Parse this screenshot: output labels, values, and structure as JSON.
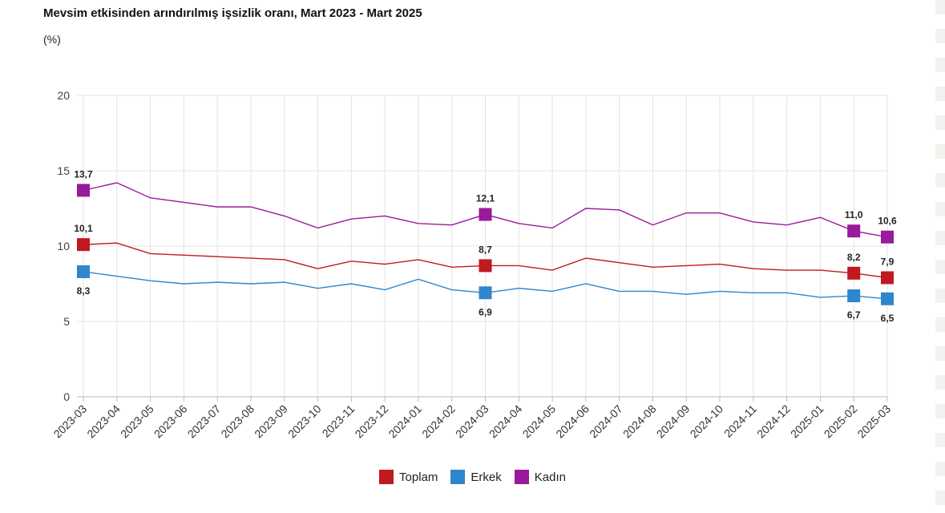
{
  "title": "Mevsim etkisinden arındırılmış işsizlik oranı, Mart 2023 - Mart 2025",
  "unit": "(%)",
  "chart_data": {
    "type": "line",
    "title": "Mevsim etkisinden arındırılmış işsizlik oranı, Mart 2023 - Mart 2025",
    "ylabel": "(%)",
    "ylim": [
      0,
      20
    ],
    "yticks": [
      0,
      5,
      10,
      15,
      20
    ],
    "grid": true,
    "legend_position": "bottom",
    "categories": [
      "2023-03",
      "2023-04",
      "2023-05",
      "2023-06",
      "2023-07",
      "2023-08",
      "2023-09",
      "2023-10",
      "2023-11",
      "2023-12",
      "2024-01",
      "2024-02",
      "2024-03",
      "2024-04",
      "2024-05",
      "2024-06",
      "2024-07",
      "2024-08",
      "2024-09",
      "2024-10",
      "2024-11",
      "2024-12",
      "2025-01",
      "2025-02",
      "2025-03"
    ],
    "series": [
      {
        "name": "Toplam",
        "color": "#c0191f",
        "values": [
          10.1,
          10.2,
          9.5,
          9.4,
          9.3,
          9.2,
          9.1,
          8.5,
          9.0,
          8.8,
          9.1,
          8.6,
          8.7,
          8.7,
          8.4,
          9.2,
          8.9,
          8.6,
          8.7,
          8.8,
          8.5,
          8.4,
          8.4,
          8.2,
          7.9
        ],
        "labels": {
          "0": "10,1",
          "12": "8,7",
          "23": "8,2",
          "24": "7,9"
        },
        "label_side": "above"
      },
      {
        "name": "Erkek",
        "color": "#2f86cc",
        "values": [
          8.3,
          8.0,
          7.7,
          7.5,
          7.6,
          7.5,
          7.6,
          7.2,
          7.5,
          7.1,
          7.8,
          7.1,
          6.9,
          7.2,
          7.0,
          7.5,
          7.0,
          7.0,
          6.8,
          7.0,
          6.9,
          6.9,
          6.6,
          6.7,
          6.5
        ],
        "labels": {
          "0": "8,3",
          "12": "6,9",
          "23": "6,7",
          "24": "6,5"
        },
        "label_side": "below"
      },
      {
        "name": "Kadın",
        "color": "#991a9b",
        "values": [
          13.7,
          14.2,
          13.2,
          12.9,
          12.6,
          12.6,
          12.0,
          11.2,
          11.8,
          12.0,
          11.5,
          11.4,
          12.1,
          11.5,
          11.2,
          12.5,
          12.4,
          11.4,
          12.2,
          12.2,
          11.6,
          11.4,
          11.9,
          11.0,
          10.6
        ],
        "labels": {
          "0": "13,7",
          "12": "12,1",
          "23": "11,0",
          "24": "10,6"
        },
        "label_side": "above"
      }
    ]
  }
}
